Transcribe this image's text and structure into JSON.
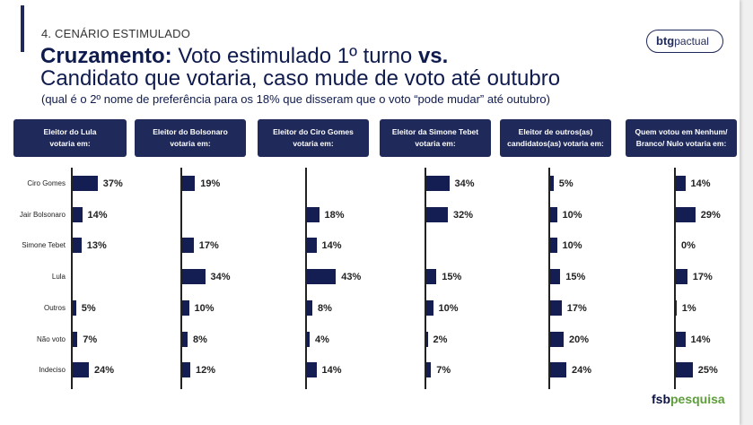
{
  "header": {
    "section": "4. CENÁRIO ESTIMULADO",
    "title_bold": "Cruzamento:",
    "title_part1": " Voto estimulado 1º turno ",
    "title_vs": "vs.",
    "title_line2": "Candidato que votaria, caso mude de voto até outubro",
    "note": "(qual é o 2º nome de preferência para os 18% que disseram que o voto “pode mudar” até outubro)"
  },
  "logo": {
    "brand_bold": "btg",
    "brand_rest": "pactual"
  },
  "footer": {
    "brand_bold": "fsb",
    "brand_rest": "pesquisa"
  },
  "colors": {
    "bar": "#141e52",
    "header_bg": "#1f2a5a"
  },
  "chart_data": {
    "type": "bar",
    "orientation": "horizontal",
    "categories": [
      "Ciro Gomes",
      "Jair Bolsonaro",
      "Simone Tebet",
      "Lula",
      "Outros",
      "Não voto",
      "Indeciso"
    ],
    "series": [
      {
        "name": "Eleitor do Lula votaria em:",
        "values": [
          37,
          14,
          13,
          null,
          5,
          7,
          24
        ],
        "labels": [
          "37%",
          "14%",
          "13%",
          "",
          "5%",
          "7%",
          "24%"
        ]
      },
      {
        "name": "Eleitor do Bolsonaro votaria em:",
        "values": [
          19,
          null,
          17,
          34,
          10,
          8,
          12
        ],
        "labels": [
          "19%",
          "",
          "17%",
          "34%",
          "10%",
          "8%",
          "12%"
        ]
      },
      {
        "name": "Eleitor do Ciro Gomes votaria em:",
        "values": [
          null,
          18,
          14,
          43,
          8,
          4,
          14
        ],
        "labels": [
          "",
          "18%",
          "14%",
          "43%",
          "8%",
          "4%",
          "14%"
        ]
      },
      {
        "name": "Eleitor da Simone Tebet votaria em:",
        "values": [
          34,
          32,
          null,
          15,
          10,
          2,
          7
        ],
        "labels": [
          "34%",
          "32%",
          "",
          "15%",
          "10%",
          "2%",
          "7%"
        ]
      },
      {
        "name": "Eleitor de outros(as) candidatos(as) votaria em:",
        "values": [
          5,
          10,
          10,
          15,
          17,
          20,
          24
        ],
        "labels": [
          "5%",
          "10%",
          "10%",
          "15%",
          "17%",
          "20%",
          "24%"
        ]
      },
      {
        "name": "Quem votou em Nenhum/ Branco/ Nulo votaria em:",
        "values": [
          14,
          29,
          0,
          17,
          1,
          14,
          25
        ],
        "labels": [
          "14%",
          "29%",
          "0%",
          "17%",
          "1%",
          "14%",
          "25%"
        ]
      }
    ],
    "panel_titles": [
      [
        "Eleitor do Lula",
        "votaria em:"
      ],
      [
        "Eleitor do Bolsonaro",
        "votaria em:"
      ],
      [
        "Eleitor do Ciro Gomes",
        "votaria em:"
      ],
      [
        "Eleitor da Simone Tebet",
        "votaria em:"
      ],
      [
        "Eleitor de outros(as)",
        "candidatos(as) votaria em:"
      ],
      [
        "Quem votou em Nenhum/",
        "Branco/ Nulo votaria em:"
      ]
    ]
  }
}
